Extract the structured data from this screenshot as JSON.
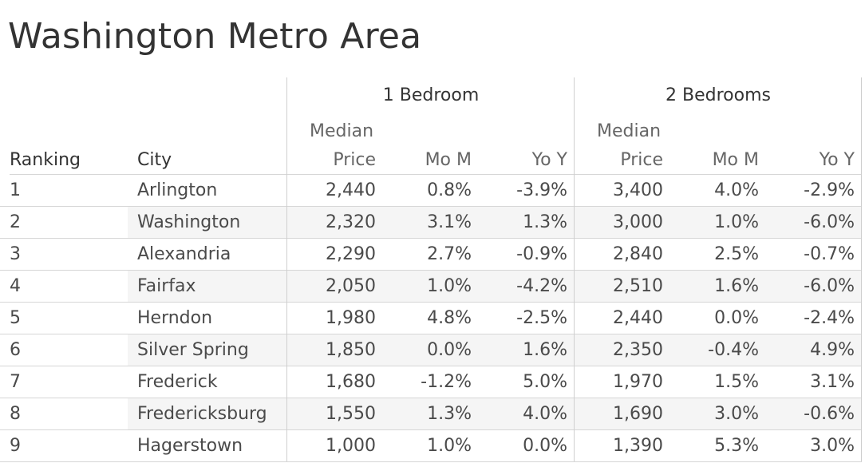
{
  "chart_data": {
    "type": "table",
    "title": "Washington Metro Area",
    "groups": [
      "1 Bedroom",
      "2 Bedrooms"
    ],
    "columns": {
      "ranking": "Ranking",
      "city": "City",
      "median_top": "Median",
      "median_bottom": "Price",
      "mom": "Mo M",
      "yoy": "Yo Y"
    },
    "rows": [
      {
        "rank": "1",
        "city": "Arlington",
        "b1_price": "2,440",
        "b1_mom": "0.8%",
        "b1_yoy": "-3.9%",
        "b2_price": "3,400",
        "b2_mom": "4.0%",
        "b2_yoy": "-2.9%"
      },
      {
        "rank": "2",
        "city": "Washington",
        "b1_price": "2,320",
        "b1_mom": "3.1%",
        "b1_yoy": "1.3%",
        "b2_price": "3,000",
        "b2_mom": "1.0%",
        "b2_yoy": "-6.0%"
      },
      {
        "rank": "3",
        "city": "Alexandria",
        "b1_price": "2,290",
        "b1_mom": "2.7%",
        "b1_yoy": "-0.9%",
        "b2_price": "2,840",
        "b2_mom": "2.5%",
        "b2_yoy": "-0.7%"
      },
      {
        "rank": "4",
        "city": "Fairfax",
        "b1_price": "2,050",
        "b1_mom": "1.0%",
        "b1_yoy": "-4.2%",
        "b2_price": "2,510",
        "b2_mom": "1.6%",
        "b2_yoy": "-6.0%"
      },
      {
        "rank": "5",
        "city": "Herndon",
        "b1_price": "1,980",
        "b1_mom": "4.8%",
        "b1_yoy": "-2.5%",
        "b2_price": "2,440",
        "b2_mom": "0.0%",
        "b2_yoy": "-2.4%"
      },
      {
        "rank": "6",
        "city": "Silver Spring",
        "b1_price": "1,850",
        "b1_mom": "0.0%",
        "b1_yoy": "1.6%",
        "b2_price": "2,350",
        "b2_mom": "-0.4%",
        "b2_yoy": "4.9%"
      },
      {
        "rank": "7",
        "city": "Frederick",
        "b1_price": "1,680",
        "b1_mom": "-1.2%",
        "b1_yoy": "5.0%",
        "b2_price": "1,970",
        "b2_mom": "1.5%",
        "b2_yoy": "3.1%"
      },
      {
        "rank": "8",
        "city": "Fredericksburg",
        "b1_price": "1,550",
        "b1_mom": "1.3%",
        "b1_yoy": "4.0%",
        "b2_price": "1,690",
        "b2_mom": "3.0%",
        "b2_yoy": "-0.6%"
      },
      {
        "rank": "9",
        "city": "Hagerstown",
        "b1_price": "1,000",
        "b1_mom": "1.0%",
        "b1_yoy": "0.0%",
        "b2_price": "1,390",
        "b2_mom": "5.3%",
        "b2_yoy": "3.0%"
      }
    ]
  }
}
